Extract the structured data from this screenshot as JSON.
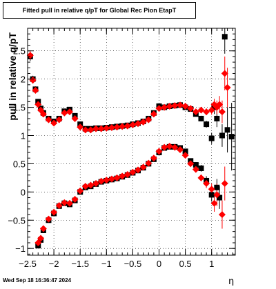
{
  "title": "Fitted pull in relative q/pT for Global Rec Pion EtapT",
  "timestamp": "Wed Sep 18 16:36:47 2024",
  "colors": {
    "series_black": "#000000",
    "series_red": "#ff0000",
    "grid": "#000000",
    "background": "#ffffff"
  },
  "chart_data": {
    "type": "scatter",
    "title": "Fitted pull in relative q/pT for Global Rec Pion EtapT",
    "xlabel": "η",
    "ylabel": "pull in relative q/pT",
    "xlim": [
      -2.5,
      1.45
    ],
    "ylim": [
      -1.12,
      2.9
    ],
    "grid": true,
    "x_ticks": [
      {
        "value": -2.5,
        "label": "−2.5"
      },
      {
        "value": -2.0,
        "label": "−2"
      },
      {
        "value": -1.5,
        "label": "−1.5"
      },
      {
        "value": -1.0,
        "label": "−1"
      },
      {
        "value": -0.5,
        "label": "−0.5"
      },
      {
        "value": 0.0,
        "label": "0"
      },
      {
        "value": 0.5,
        "label": "0.5"
      },
      {
        "value": 1.0,
        "label": "1"
      }
    ],
    "y_ticks": [
      {
        "value": -1.0,
        "label": "−1"
      },
      {
        "value": -0.5,
        "label": "−0.5"
      },
      {
        "value": 0.0,
        "label": "0"
      },
      {
        "value": 0.5,
        "label": "0.5"
      },
      {
        "value": 1.0,
        "label": "1"
      },
      {
        "value": 1.5,
        "label": "1.5"
      },
      {
        "value": 2.0,
        "label": "2"
      },
      {
        "value": 2.5,
        "label": "2.5"
      }
    ],
    "series": [
      {
        "marker": "square",
        "color": "#000000",
        "points": [
          {
            "x": -2.45,
            "y": 2.4,
            "err": 0.08
          },
          {
            "x": -2.4,
            "y": 2.0,
            "err": 0.06
          },
          {
            "x": -2.35,
            "y": 1.82,
            "err": 0.05
          },
          {
            "x": -2.3,
            "y": 1.6,
            "err": 0.03
          },
          {
            "x": -2.25,
            "y": 1.48,
            "err": 0.02
          },
          {
            "x": -2.2,
            "y": 1.4,
            "err": 0.02
          },
          {
            "x": -2.1,
            "y": 1.3,
            "err": 0.02
          },
          {
            "x": -2.0,
            "y": 1.25,
            "err": 0.02
          },
          {
            "x": -1.9,
            "y": 1.3,
            "err": 0.02
          },
          {
            "x": -1.8,
            "y": 1.43,
            "err": 0.02
          },
          {
            "x": -1.7,
            "y": 1.46,
            "err": 0.02
          },
          {
            "x": -1.6,
            "y": 1.35,
            "err": 0.02
          },
          {
            "x": -1.5,
            "y": 1.2,
            "err": 0.02
          },
          {
            "x": -1.4,
            "y": 1.12,
            "err": 0.02
          },
          {
            "x": -1.3,
            "y": 1.12,
            "err": 0.02
          },
          {
            "x": -1.2,
            "y": 1.13,
            "err": 0.02
          },
          {
            "x": -1.1,
            "y": 1.13,
            "err": 0.02
          },
          {
            "x": -1.0,
            "y": 1.14,
            "err": 0.02
          },
          {
            "x": -0.9,
            "y": 1.15,
            "err": 0.02
          },
          {
            "x": -0.8,
            "y": 1.16,
            "err": 0.02
          },
          {
            "x": -0.7,
            "y": 1.17,
            "err": 0.02
          },
          {
            "x": -0.6,
            "y": 1.18,
            "err": 0.02
          },
          {
            "x": -0.5,
            "y": 1.2,
            "err": 0.02
          },
          {
            "x": -0.4,
            "y": 1.22,
            "err": 0.02
          },
          {
            "x": -0.3,
            "y": 1.25,
            "err": 0.02
          },
          {
            "x": -0.2,
            "y": 1.3,
            "err": 0.02
          },
          {
            "x": -0.1,
            "y": 1.4,
            "err": 0.02
          },
          {
            "x": 0.0,
            "y": 1.52,
            "err": 0.02
          },
          {
            "x": 0.1,
            "y": 1.5,
            "err": 0.02
          },
          {
            "x": 0.2,
            "y": 1.52,
            "err": 0.02
          },
          {
            "x": 0.3,
            "y": 1.53,
            "err": 0.02
          },
          {
            "x": 0.4,
            "y": 1.54,
            "err": 0.02
          },
          {
            "x": 0.5,
            "y": 1.5,
            "err": 0.03
          },
          {
            "x": 0.6,
            "y": 1.47,
            "err": 0.03
          },
          {
            "x": 0.7,
            "y": 1.38,
            "err": 0.04
          },
          {
            "x": 0.8,
            "y": 1.3,
            "err": 0.05
          },
          {
            "x": 0.9,
            "y": 1.2,
            "err": 0.06
          },
          {
            "x": 1.0,
            "y": 0.95,
            "err": 0.1
          },
          {
            "x": 1.05,
            "y": 1.5,
            "err": 0.12
          },
          {
            "x": 1.1,
            "y": 1.3,
            "err": 0.15
          },
          {
            "x": 1.2,
            "y": 1.0,
            "err": 0.2
          },
          {
            "x": 1.25,
            "y": 2.75,
            "err": 0.3
          },
          {
            "x": 1.3,
            "y": 1.1,
            "err": 0.4
          },
          {
            "x": 1.38,
            "y": 0.98,
            "err": 0.6
          },
          {
            "x": -2.3,
            "y": -0.95,
            "err": 0.05
          },
          {
            "x": -2.25,
            "y": -0.85,
            "err": 0.04
          },
          {
            "x": -2.2,
            "y": -0.68,
            "err": 0.03
          },
          {
            "x": -2.1,
            "y": -0.5,
            "err": 0.02
          },
          {
            "x": -2.0,
            "y": -0.38,
            "err": 0.02
          },
          {
            "x": -1.9,
            "y": -0.25,
            "err": 0.02
          },
          {
            "x": -1.8,
            "y": -0.2,
            "err": 0.02
          },
          {
            "x": -1.7,
            "y": -0.22,
            "err": 0.02
          },
          {
            "x": -1.6,
            "y": -0.15,
            "err": 0.02
          },
          {
            "x": -1.5,
            "y": 0.0,
            "err": 0.02
          },
          {
            "x": -1.4,
            "y": 0.08,
            "err": 0.02
          },
          {
            "x": -1.3,
            "y": 0.1,
            "err": 0.02
          },
          {
            "x": -1.2,
            "y": 0.14,
            "err": 0.02
          },
          {
            "x": -1.1,
            "y": 0.18,
            "err": 0.02
          },
          {
            "x": -1.0,
            "y": 0.2,
            "err": 0.02
          },
          {
            "x": -0.9,
            "y": 0.22,
            "err": 0.02
          },
          {
            "x": -0.8,
            "y": 0.24,
            "err": 0.02
          },
          {
            "x": -0.7,
            "y": 0.27,
            "err": 0.02
          },
          {
            "x": -0.6,
            "y": 0.3,
            "err": 0.02
          },
          {
            "x": -0.5,
            "y": 0.34,
            "err": 0.02
          },
          {
            "x": -0.4,
            "y": 0.38,
            "err": 0.02
          },
          {
            "x": -0.3,
            "y": 0.43,
            "err": 0.02
          },
          {
            "x": -0.2,
            "y": 0.5,
            "err": 0.02
          },
          {
            "x": -0.1,
            "y": 0.58,
            "err": 0.02
          },
          {
            "x": 0.0,
            "y": 0.7,
            "err": 0.02
          },
          {
            "x": 0.1,
            "y": 0.78,
            "err": 0.02
          },
          {
            "x": 0.2,
            "y": 0.8,
            "err": 0.02
          },
          {
            "x": 0.3,
            "y": 0.8,
            "err": 0.02
          },
          {
            "x": 0.4,
            "y": 0.78,
            "err": 0.02
          },
          {
            "x": 0.5,
            "y": 0.72,
            "err": 0.03
          },
          {
            "x": 0.6,
            "y": 0.55,
            "err": 0.04
          },
          {
            "x": 0.7,
            "y": 0.48,
            "err": 0.05
          },
          {
            "x": 0.8,
            "y": 0.42,
            "err": 0.06
          },
          {
            "x": 0.9,
            "y": 0.2,
            "err": 0.08
          },
          {
            "x": 1.0,
            "y": -0.05,
            "err": 0.12
          },
          {
            "x": 1.1,
            "y": 0.08,
            "err": 0.15
          },
          {
            "x": 1.15,
            "y": -0.1,
            "err": 0.2
          }
        ]
      },
      {
        "marker": "diamond",
        "color": "#ff0000",
        "points": [
          {
            "x": -2.45,
            "y": 2.42,
            "err": 0.08
          },
          {
            "x": -2.4,
            "y": 1.98,
            "err": 0.06
          },
          {
            "x": -2.35,
            "y": 1.8,
            "err": 0.05
          },
          {
            "x": -2.3,
            "y": 1.55,
            "err": 0.03
          },
          {
            "x": -2.25,
            "y": 1.45,
            "err": 0.02
          },
          {
            "x": -2.2,
            "y": 1.38,
            "err": 0.02
          },
          {
            "x": -2.1,
            "y": 1.28,
            "err": 0.02
          },
          {
            "x": -2.0,
            "y": 1.22,
            "err": 0.02
          },
          {
            "x": -1.9,
            "y": 1.28,
            "err": 0.02
          },
          {
            "x": -1.8,
            "y": 1.4,
            "err": 0.02
          },
          {
            "x": -1.7,
            "y": 1.42,
            "err": 0.02
          },
          {
            "x": -1.6,
            "y": 1.3,
            "err": 0.02
          },
          {
            "x": -1.5,
            "y": 1.15,
            "err": 0.02
          },
          {
            "x": -1.4,
            "y": 1.1,
            "err": 0.02
          },
          {
            "x": -1.3,
            "y": 1.1,
            "err": 0.02
          },
          {
            "x": -1.2,
            "y": 1.12,
            "err": 0.02
          },
          {
            "x": -1.1,
            "y": 1.12,
            "err": 0.02
          },
          {
            "x": -1.0,
            "y": 1.13,
            "err": 0.02
          },
          {
            "x": -0.9,
            "y": 1.14,
            "err": 0.02
          },
          {
            "x": -0.8,
            "y": 1.15,
            "err": 0.02
          },
          {
            "x": -0.7,
            "y": 1.16,
            "err": 0.02
          },
          {
            "x": -0.6,
            "y": 1.17,
            "err": 0.02
          },
          {
            "x": -0.5,
            "y": 1.19,
            "err": 0.02
          },
          {
            "x": -0.4,
            "y": 1.21,
            "err": 0.02
          },
          {
            "x": -0.3,
            "y": 1.24,
            "err": 0.02
          },
          {
            "x": -0.2,
            "y": 1.28,
            "err": 0.02
          },
          {
            "x": -0.1,
            "y": 1.38,
            "err": 0.02
          },
          {
            "x": 0.0,
            "y": 1.48,
            "err": 0.02
          },
          {
            "x": 0.1,
            "y": 1.5,
            "err": 0.02
          },
          {
            "x": 0.2,
            "y": 1.52,
            "err": 0.02
          },
          {
            "x": 0.3,
            "y": 1.53,
            "err": 0.02
          },
          {
            "x": 0.4,
            "y": 1.54,
            "err": 0.02
          },
          {
            "x": 0.5,
            "y": 1.52,
            "err": 0.03
          },
          {
            "x": 0.6,
            "y": 1.48,
            "err": 0.03
          },
          {
            "x": 0.7,
            "y": 1.42,
            "err": 0.04
          },
          {
            "x": 0.8,
            "y": 1.45,
            "err": 0.05
          },
          {
            "x": 0.9,
            "y": 1.42,
            "err": 0.06
          },
          {
            "x": 1.0,
            "y": 1.45,
            "err": 0.08
          },
          {
            "x": 1.05,
            "y": 1.55,
            "err": 0.1
          },
          {
            "x": 1.1,
            "y": 1.5,
            "err": 0.12
          },
          {
            "x": 1.15,
            "y": 1.55,
            "err": 0.15
          },
          {
            "x": 1.2,
            "y": 1.42,
            "err": 0.2
          },
          {
            "x": 1.25,
            "y": 2.1,
            "err": 0.3
          },
          {
            "x": 1.3,
            "y": 1.85,
            "err": 0.35
          },
          {
            "x": -2.3,
            "y": -0.9,
            "err": 0.05
          },
          {
            "x": -2.25,
            "y": -0.82,
            "err": 0.04
          },
          {
            "x": -2.2,
            "y": -0.65,
            "err": 0.03
          },
          {
            "x": -2.1,
            "y": -0.48,
            "err": 0.02
          },
          {
            "x": -2.0,
            "y": -0.36,
            "err": 0.02
          },
          {
            "x": -1.9,
            "y": -0.24,
            "err": 0.02
          },
          {
            "x": -1.8,
            "y": -0.19,
            "err": 0.02
          },
          {
            "x": -1.7,
            "y": -0.2,
            "err": 0.02
          },
          {
            "x": -1.6,
            "y": -0.13,
            "err": 0.02
          },
          {
            "x": -1.5,
            "y": 0.02,
            "err": 0.02
          },
          {
            "x": -1.4,
            "y": 0.1,
            "err": 0.02
          },
          {
            "x": -1.3,
            "y": 0.12,
            "err": 0.02
          },
          {
            "x": -1.2,
            "y": 0.15,
            "err": 0.02
          },
          {
            "x": -1.1,
            "y": 0.19,
            "err": 0.02
          },
          {
            "x": -1.0,
            "y": 0.21,
            "err": 0.02
          },
          {
            "x": -0.9,
            "y": 0.23,
            "err": 0.02
          },
          {
            "x": -0.8,
            "y": 0.25,
            "err": 0.02
          },
          {
            "x": -0.7,
            "y": 0.28,
            "err": 0.02
          },
          {
            "x": -0.6,
            "y": 0.31,
            "err": 0.02
          },
          {
            "x": -0.5,
            "y": 0.35,
            "err": 0.02
          },
          {
            "x": -0.4,
            "y": 0.39,
            "err": 0.02
          },
          {
            "x": -0.3,
            "y": 0.44,
            "err": 0.02
          },
          {
            "x": -0.2,
            "y": 0.51,
            "err": 0.02
          },
          {
            "x": -0.1,
            "y": 0.6,
            "err": 0.02
          },
          {
            "x": 0.0,
            "y": 0.72,
            "err": 0.02
          },
          {
            "x": 0.1,
            "y": 0.79,
            "err": 0.02
          },
          {
            "x": 0.2,
            "y": 0.81,
            "err": 0.02
          },
          {
            "x": 0.3,
            "y": 0.79,
            "err": 0.02
          },
          {
            "x": 0.4,
            "y": 0.75,
            "err": 0.02
          },
          {
            "x": 0.5,
            "y": 0.65,
            "err": 0.03
          },
          {
            "x": 0.6,
            "y": 0.5,
            "err": 0.04
          },
          {
            "x": 0.7,
            "y": 0.4,
            "err": 0.05
          },
          {
            "x": 0.8,
            "y": 0.25,
            "err": 0.06
          },
          {
            "x": 0.9,
            "y": 0.15,
            "err": 0.08
          },
          {
            "x": 1.0,
            "y": 0.05,
            "err": 0.1
          },
          {
            "x": 1.05,
            "y": -0.2,
            "err": 0.15
          },
          {
            "x": 1.1,
            "y": -0.05,
            "err": 0.2
          },
          {
            "x": 1.2,
            "y": -0.4,
            "err": 0.25
          },
          {
            "x": 1.25,
            "y": 0.15,
            "err": 0.3
          }
        ]
      }
    ]
  }
}
